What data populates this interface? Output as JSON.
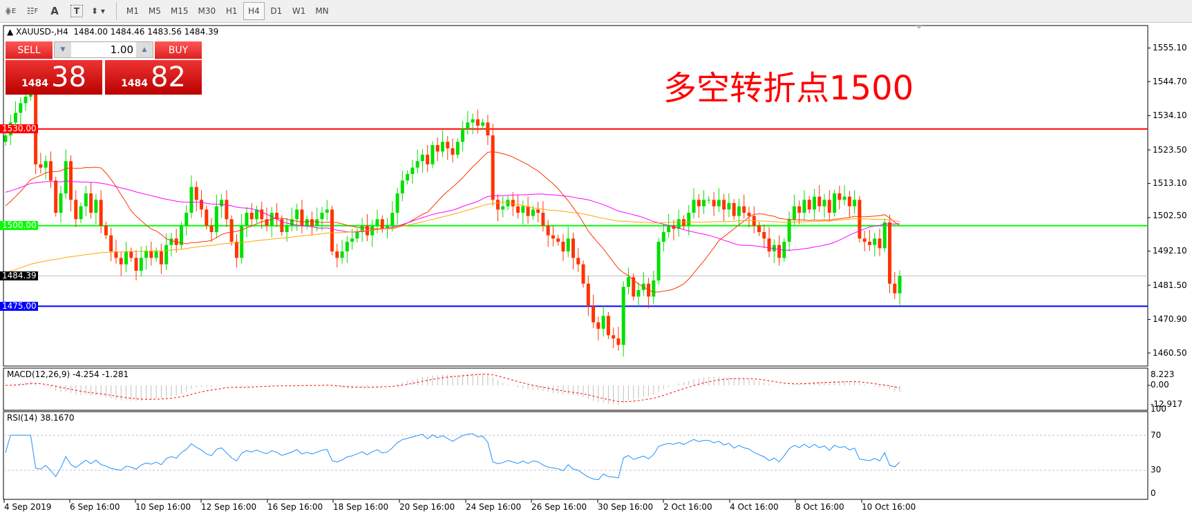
{
  "toolbar": {
    "tools": [
      {
        "icon": "fibonacci-expansion-icon"
      },
      {
        "icon": "fibonacci-fan-icon"
      },
      {
        "icon": "text-icon",
        "label": "A"
      },
      {
        "icon": "text-label-icon",
        "label": "T"
      },
      {
        "icon": "arrows-dropdown-icon"
      }
    ],
    "timeframes": [
      "M1",
      "M5",
      "M15",
      "M30",
      "H1",
      "H4",
      "D1",
      "W1",
      "MN"
    ],
    "active_timeframe": "H4"
  },
  "chart_header": {
    "symbol": "XAUUSD-,H4",
    "ohlc": "1484.00 1484.46 1483.56 1484.39"
  },
  "trade_panel": {
    "sell_label": "SELL",
    "buy_label": "BUY",
    "volume": "1.00",
    "sell_big": "1484",
    "sell_small": "38",
    "buy_big": "1484",
    "buy_small": "82"
  },
  "headline": "多空转折点1500",
  "colors": {
    "bull": "#00e000",
    "bear": "#ff3300",
    "ma_fast": "#ff3300",
    "ma_mid": "#ff00ff",
    "ma_slow": "#ffa500",
    "rsi": "#1e90ff",
    "macd_signal": "#ff0000"
  },
  "chart_data": {
    "type": "candlestick",
    "price_axis": [
      "1555.10",
      "1544.70",
      "1534.10",
      "1523.50",
      "1513.10",
      "1502.50",
      "1492.10",
      "1481.50",
      "1470.90",
      "1460.50"
    ],
    "horizontal_lines": [
      {
        "price": "1530.00",
        "color": "#ff0000"
      },
      {
        "price": "1500.00",
        "color": "#00ff00"
      },
      {
        "price": "1475.00",
        "color": "#0000ff"
      }
    ],
    "last_price": "1484.39",
    "time_axis": [
      "4 Sep 2019",
      "6 Sep 16:00",
      "10 Sep 16:00",
      "12 Sep 16:00",
      "16 Sep 16:00",
      "18 Sep 16:00",
      "20 Sep 16:00",
      "24 Sep 16:00",
      "26 Sep 16:00",
      "30 Sep 16:00",
      "2 Oct 16:00",
      "4 Oct 16:00",
      "8 Oct 16:00",
      "10 Oct 16:00"
    ],
    "closes": [
      1528,
      1532,
      1535,
      1538,
      1540,
      1542,
      1519,
      1518,
      1520,
      1514,
      1504,
      1510,
      1520,
      1508,
      1502,
      1506,
      1510,
      1504,
      1508,
      1500,
      1497,
      1492,
      1490,
      1488,
      1492,
      1490,
      1486,
      1490,
      1492,
      1490,
      1492,
      1488,
      1494,
      1496,
      1494,
      1500,
      1504,
      1512,
      1508,
      1505,
      1500,
      1498,
      1506,
      1508,
      1502,
      1495,
      1490,
      1500,
      1504,
      1502,
      1505,
      1502,
      1500,
      1504,
      1502,
      1498,
      1500,
      1502,
      1505,
      1500,
      1502,
      1500,
      1502,
      1504,
      1505,
      1492,
      1490,
      1492,
      1495,
      1496,
      1498,
      1500,
      1497,
      1500,
      1502,
      1499,
      1500,
      1504,
      1510,
      1514,
      1516,
      1518,
      1520,
      1522,
      1519,
      1525,
      1523,
      1526,
      1524,
      1522,
      1526,
      1530,
      1532,
      1533,
      1531,
      1532,
      1528,
      1508,
      1505,
      1506,
      1508,
      1506,
      1504,
      1506,
      1503,
      1505,
      1504,
      1500,
      1497,
      1496,
      1495,
      1492,
      1496,
      1490,
      1488,
      1482,
      1475,
      1470,
      1468,
      1472,
      1466,
      1465,
      1463,
      1481,
      1484,
      1478,
      1480,
      1482,
      1478,
      1483,
      1495,
      1498,
      1500,
      1499,
      1502,
      1500,
      1504,
      1508,
      1506,
      1508,
      1508,
      1506,
      1508,
      1505,
      1507,
      1503,
      1506,
      1504,
      1503,
      1500,
      1498,
      1496,
      1492,
      1494,
      1490,
      1495,
      1502,
      1506,
      1504,
      1508,
      1505,
      1509,
      1506,
      1508,
      1504,
      1510,
      1508,
      1509,
      1506,
      1508,
      1496,
      1495,
      1494,
      1496,
      1493,
      1501,
      1482,
      1479,
      1484.39
    ],
    "macd": {
      "label": "MACD(12,26,9) -4.254 -1.281",
      "axis": [
        "8.223",
        "0.00",
        "-12.917"
      ]
    },
    "rsi": {
      "label": "RSI(14) 38.1670",
      "axis": [
        "100",
        "70",
        "30",
        "0"
      ],
      "levels": [
        70,
        30
      ]
    }
  }
}
